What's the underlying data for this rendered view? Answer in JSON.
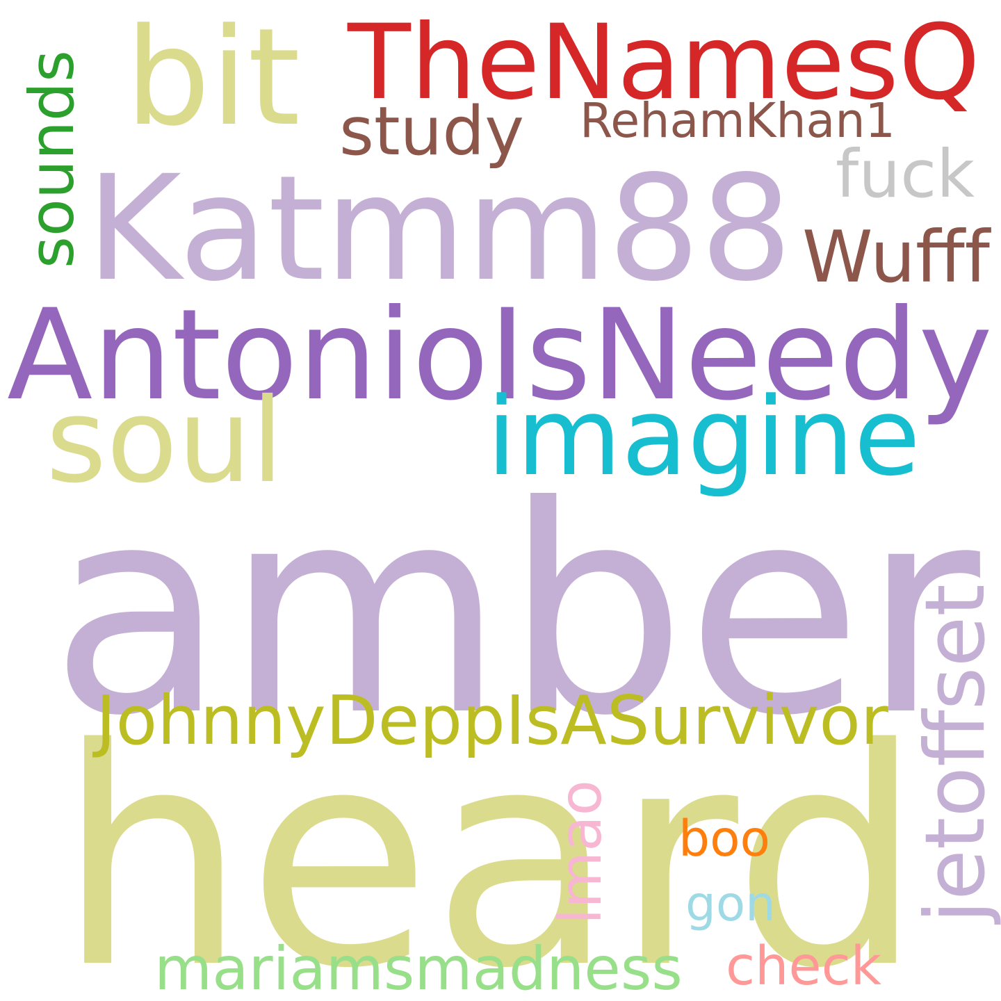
{
  "words": [
    {
      "id": "amber",
      "text": "amber",
      "color": "#c5b0d5",
      "vertical": false
    },
    {
      "id": "heard",
      "text": "heard",
      "color": "#dbdb8d",
      "vertical": false
    },
    {
      "id": "katmm88",
      "text": "Katmm88",
      "color": "#c5b0d5",
      "vertical": false
    },
    {
      "id": "antonioisneedy",
      "text": "AntonioIsNeedy",
      "color": "#9467bd",
      "vertical": false
    },
    {
      "id": "thenamesq",
      "text": "TheNamesQ",
      "color": "#d62728",
      "vertical": false
    },
    {
      "id": "imagine",
      "text": "imagine",
      "color": "#17becf",
      "vertical": false
    },
    {
      "id": "soul",
      "text": "soul",
      "color": "#dbdb8d",
      "vertical": false
    },
    {
      "id": "bit",
      "text": "bit",
      "color": "#dbdb8d",
      "vertical": false
    },
    {
      "id": "johnnydeppisasurvivor",
      "text": "JohnnyDeppIsASurvivor",
      "color": "#bcbd22",
      "vertical": false
    },
    {
      "id": "study",
      "text": "study",
      "color": "#8c564b",
      "vertical": false
    },
    {
      "id": "rehamkhan1",
      "text": "RehamKhan1",
      "color": "#8c564b",
      "vertical": false
    },
    {
      "id": "fuck",
      "text": "fuck",
      "color": "#c7c7c7",
      "vertical": false
    },
    {
      "id": "wufff",
      "text": "Wufff",
      "color": "#8c564b",
      "vertical": false
    },
    {
      "id": "sounds",
      "text": "sounds",
      "color": "#2ca02c",
      "vertical": true
    },
    {
      "id": "jetoffset",
      "text": "jetoffset",
      "color": "#c5b0d5",
      "vertical": true
    },
    {
      "id": "lmao",
      "text": "lmao",
      "color": "#f7b6d2",
      "vertical": true
    },
    {
      "id": "boo",
      "text": "boo",
      "color": "#ff7f0e",
      "vertical": false
    },
    {
      "id": "gon",
      "text": "gon",
      "color": "#9edae5",
      "vertical": false
    },
    {
      "id": "mariamsmadness",
      "text": "mariamsmadness",
      "color": "#98df8a",
      "vertical": false
    },
    {
      "id": "check",
      "text": "check",
      "color": "#ff9896",
      "vertical": false
    }
  ]
}
